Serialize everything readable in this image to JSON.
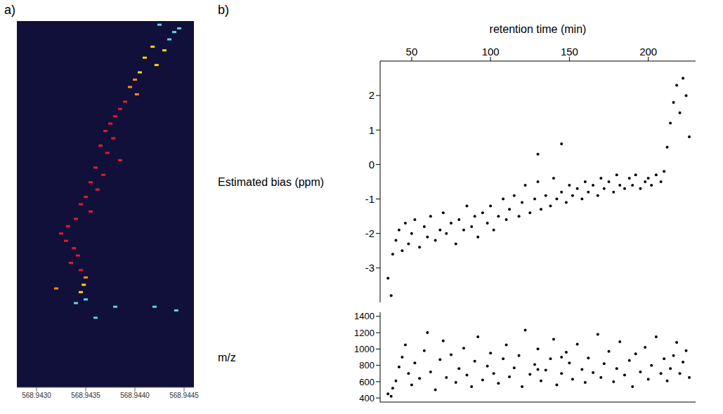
{
  "chart_data": [
    {
      "type": "scatter",
      "title": "a)",
      "marker": "square",
      "grid": false,
      "tick_labels": "x",
      "xlim": [
        568.9428,
        568.9446
      ],
      "xticks": [
        {
          "value": 568.943,
          "label": "568.9430"
        },
        568.9435,
        {
          "value": 568.944,
          "label": "568.9440"
        },
        568.9445
      ],
      "ylim": [
        0,
        100
      ],
      "x": [
        568.94425,
        568.9444,
        568.94445,
        568.94435,
        568.94418,
        568.9443,
        568.9441,
        568.94422,
        568.94405,
        568.944,
        568.94395,
        568.94402,
        568.9439,
        568.94385,
        568.9438,
        568.94375,
        568.9437,
        568.94378,
        568.94365,
        568.94372,
        568.94385,
        568.9436,
        568.94368,
        568.94355,
        568.94362,
        568.9435,
        568.94345,
        568.94355,
        568.9434,
        568.94332,
        568.94325,
        568.9433,
        568.94338,
        568.94342,
        568.94335,
        568.94345,
        568.9435,
        568.94348,
        568.94345,
        568.9432,
        568.9435,
        568.9434,
        568.9438,
        568.9442,
        568.94442,
        568.9436
      ],
      "values": [
        99,
        97,
        98,
        95,
        93,
        92,
        90,
        88,
        86,
        84,
        82,
        80,
        78,
        76,
        74,
        72,
        70,
        68,
        66,
        64,
        62,
        60,
        58,
        56,
        54,
        52,
        50,
        48,
        46,
        44,
        42,
        40,
        38,
        36,
        34,
        32,
        30,
        28,
        26,
        27,
        24,
        23,
        22,
        22,
        21,
        19
      ],
      "colors": [
        "#5fd3e6",
        "#5fd3e6",
        "#5fd3e6",
        "#5fd3e6",
        "#ffd700",
        "#ffd700",
        "#ffd700",
        "#ffd700",
        "#ffd700",
        "#ff8c1a",
        "#ff8c1a",
        "#ff8c1a",
        "#e8182a",
        "#e8182a",
        "#e8182a",
        "#e8182a",
        "#e8182a",
        "#e8182a",
        "#e8182a",
        "#e8182a",
        "#e8182a",
        "#e8182a",
        "#e8182a",
        "#e8182a",
        "#e8182a",
        "#e8182a",
        "#e8182a",
        "#e8182a",
        "#e8182a",
        "#e8182a",
        "#e8182a",
        "#e8182a",
        "#e8182a",
        "#e8182a",
        "#e8182a",
        "#e8182a",
        "#ff8c1a",
        "#ffd700",
        "#ffd700",
        "#ff8c1a",
        "#5fd3e6",
        "#5fd3e6",
        "#5fd3e6",
        "#5fd3e6",
        "#5fd3e6",
        "#5fd3e6"
      ]
    },
    {
      "type": "scatter",
      "title": "b)",
      "x_label": "retention time (min)",
      "y_label": "Estimated bias (ppm)",
      "marker": "circle",
      "color": "#000000",
      "grid": false,
      "xlim": [
        30,
        230
      ],
      "xticks": [
        50,
        100,
        150,
        200
      ],
      "ylim": [
        -4,
        3
      ],
      "yticks": [
        -3,
        -2,
        -1,
        0,
        1,
        2
      ],
      "x": [
        35,
        37,
        38,
        40,
        42,
        44,
        46,
        48,
        50,
        52,
        55,
        58,
        60,
        62,
        65,
        68,
        70,
        72,
        75,
        78,
        80,
        83,
        85,
        88,
        90,
        92,
        95,
        98,
        100,
        102,
        105,
        108,
        110,
        112,
        115,
        118,
        120,
        122,
        125,
        128,
        130,
        132,
        135,
        138,
        140,
        142,
        145,
        148,
        150,
        152,
        155,
        158,
        160,
        162,
        165,
        168,
        170,
        172,
        175,
        178,
        180,
        182,
        185,
        188,
        190,
        192,
        195,
        198,
        200,
        202,
        205,
        208,
        210,
        212,
        214,
        216,
        218,
        220,
        222,
        224,
        226,
        130,
        145
      ],
      "values": [
        -3.3,
        -3.8,
        -2.6,
        -2.2,
        -1.9,
        -2.5,
        -1.7,
        -2.3,
        -2.0,
        -1.6,
        -2.4,
        -1.8,
        -2.1,
        -1.5,
        -2.2,
        -1.9,
        -1.4,
        -2.0,
        -1.7,
        -2.3,
        -1.6,
        -1.9,
        -1.2,
        -1.8,
        -1.5,
        -2.1,
        -1.4,
        -1.7,
        -1.2,
        -1.9,
        -1.5,
        -1.0,
        -1.6,
        -1.3,
        -0.9,
        -1.5,
        -1.1,
        -0.6,
        -1.4,
        -1.0,
        -0.5,
        -1.3,
        -0.9,
        -1.2,
        -0.4,
        -1.0,
        -0.8,
        -1.1,
        -0.6,
        -0.9,
        -0.7,
        -1.0,
        -0.5,
        -0.8,
        -0.6,
        -0.9,
        -0.4,
        -0.7,
        -0.5,
        -0.8,
        -0.3,
        -0.6,
        -0.7,
        -0.4,
        -0.6,
        -0.3,
        -0.7,
        -0.5,
        -0.4,
        -0.6,
        -0.3,
        -0.5,
        -0.2,
        0.5,
        1.2,
        1.8,
        2.3,
        1.5,
        2.5,
        2.0,
        0.8,
        0.3,
        0.6
      ]
    },
    {
      "type": "scatter",
      "y_label": "m/z",
      "marker": "circle",
      "color": "#000000",
      "grid": false,
      "tick_labels": "y",
      "xlim": [
        30,
        230
      ],
      "ylim": [
        350,
        1450
      ],
      "yticks": [
        400,
        600,
        800,
        1000,
        1200,
        1400
      ],
      "x": [
        35,
        37,
        38,
        40,
        42,
        44,
        46,
        48,
        50,
        52,
        55,
        58,
        60,
        62,
        65,
        68,
        70,
        72,
        75,
        78,
        80,
        83,
        85,
        88,
        90,
        92,
        95,
        98,
        100,
        102,
        105,
        108,
        110,
        112,
        115,
        118,
        120,
        122,
        125,
        128,
        130,
        132,
        135,
        138,
        140,
        142,
        145,
        148,
        150,
        152,
        155,
        158,
        160,
        162,
        165,
        168,
        170,
        172,
        175,
        178,
        180,
        182,
        185,
        188,
        190,
        192,
        195,
        198,
        200,
        202,
        205,
        208,
        210,
        212,
        214,
        216,
        218,
        220,
        222,
        224,
        226,
        130,
        145
      ],
      "values": [
        450,
        420,
        520,
        610,
        780,
        900,
        1050,
        700,
        560,
        830,
        640,
        980,
        1200,
        720,
        500,
        870,
        1100,
        650,
        930,
        590,
        760,
        1010,
        680,
        540,
        850,
        1150,
        620,
        790,
        950,
        700,
        580,
        880,
        1050,
        660,
        770,
        920,
        540,
        1230,
        690,
        810,
        1000,
        610,
        740,
        880,
        1120,
        560,
        700,
        960,
        830,
        630,
        1060,
        750,
        590,
        890,
        710,
        1180,
        650,
        820,
        970,
        600,
        760,
        1090,
        680,
        860,
        540,
        940,
        720,
        1020,
        630,
        800,
        1150,
        700,
        880,
        610,
        760,
        920,
        1080,
        700,
        840,
        980,
        650,
        750,
        900
      ]
    }
  ]
}
